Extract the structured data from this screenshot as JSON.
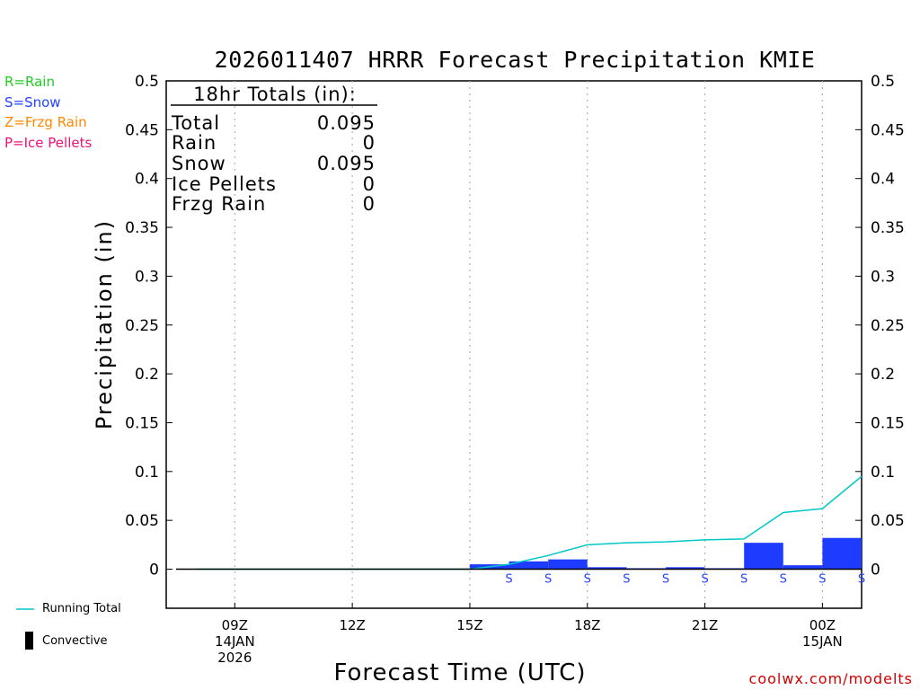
{
  "title": "2026011407 HRRR Forecast Precipitation KMIE",
  "type_legend": [
    {
      "text": "R=Rain",
      "color": "#22cc22"
    },
    {
      "text": "S=Snow",
      "color": "#2244ff"
    },
    {
      "text": "Z=Frzg Rain",
      "color": "#ff8800"
    },
    {
      "text": "P=Ice Pellets",
      "color": "#ee1177"
    }
  ],
  "totals": {
    "header": "18hr Totals (in):",
    "rows": [
      {
        "label": "Total",
        "value": "0.095"
      },
      {
        "label": "Rain",
        "value": "0"
      },
      {
        "label": "Snow",
        "value": "0.095"
      },
      {
        "label": "Ice Pellets",
        "value": "0"
      },
      {
        "label": "Frzg Rain",
        "value": "0"
      }
    ]
  },
  "bottom_legend": {
    "running_total": "Running Total",
    "convective": "Convective"
  },
  "credit": "coolwx.com/modelts",
  "colors": {
    "bar": "#1e3cff",
    "running_total": "#00c8c8",
    "grid": "#b0b0b0",
    "snow_marker": "#2244ff",
    "credit": "#d00000"
  },
  "chart_data": {
    "type": "bar",
    "title": "2026011407 HRRR Forecast Precipitation KMIE",
    "xlabel": "Forecast Time (UTC)",
    "ylabel": "Precipitation (in)",
    "ylim": [
      -0.04,
      0.5
    ],
    "yticks": [
      0,
      0.05,
      0.1,
      0.15,
      0.2,
      0.25,
      0.3,
      0.35,
      0.4,
      0.45,
      0.5
    ],
    "ytick_labels": [
      "0",
      "0.05",
      "0.1",
      "0.15",
      "0.2",
      "0.25",
      "0.3",
      "0.35",
      "0.4",
      "0.45",
      "0.5"
    ],
    "xlim": [
      7.25,
      25.0
    ],
    "x_ticks": [
      {
        "hour": 9,
        "lines": [
          "09Z",
          "14JAN",
          "2026"
        ]
      },
      {
        "hour": 12,
        "lines": [
          "12Z"
        ]
      },
      {
        "hour": 15,
        "lines": [
          "15Z"
        ]
      },
      {
        "hour": 18,
        "lines": [
          "18Z"
        ]
      },
      {
        "hour": 21,
        "lines": [
          "21Z"
        ]
      },
      {
        "hour": 24,
        "lines": [
          "00Z",
          "15JAN"
        ]
      }
    ],
    "hours": [
      8,
      9,
      10,
      11,
      12,
      13,
      14,
      15,
      16,
      17,
      18,
      19,
      20,
      21,
      22,
      23,
      24,
      25
    ],
    "hourly_precip": [
      0,
      0,
      0,
      0,
      0,
      0,
      0,
      0,
      0.005,
      0.008,
      0.01,
      0.002,
      0.001,
      0.002,
      0.001,
      0.027,
      0.004,
      0.032
    ],
    "precip_type": [
      "",
      "",
      "",
      "",
      "",
      "",
      "",
      "",
      "S",
      "S",
      "S",
      "S",
      "S",
      "S",
      "S",
      "S",
      "S",
      "S"
    ],
    "running_total": [
      0,
      0,
      0,
      0,
      0,
      0,
      0,
      0,
      0.005,
      0.014,
      0.025,
      0.027,
      0.028,
      0.03,
      0.031,
      0.058,
      0.062,
      0.095
    ],
    "zero_line_start_hour": 7.5
  }
}
